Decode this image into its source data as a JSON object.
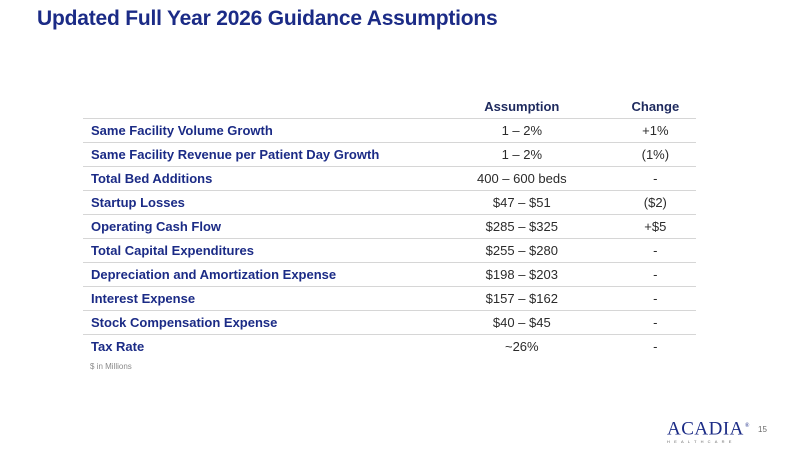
{
  "title": "Updated Full Year 2026 Guidance Assumptions",
  "table": {
    "headers": {
      "label": "",
      "assumption": "Assumption",
      "change": "Change"
    },
    "rows": [
      {
        "label": "Same Facility Volume Growth",
        "assumption": "1 – 2%",
        "change": "+1%"
      },
      {
        "label": "Same Facility Revenue per Patient Day Growth",
        "assumption": "1 – 2%",
        "change": "(1%)"
      },
      {
        "label": "Total Bed Additions",
        "assumption": "400 – 600 beds",
        "change": "-"
      },
      {
        "label": "Startup Losses",
        "assumption": "$47 – $51",
        "change": "($2)"
      },
      {
        "label": "Operating Cash Flow",
        "assumption": "$285 – $325",
        "change": "+$5"
      },
      {
        "label": "Total Capital Expenditures",
        "assumption": "$255 – $280",
        "change": "-"
      },
      {
        "label": "Depreciation and Amortization Expense",
        "assumption": "$198 – $203",
        "change": "-"
      },
      {
        "label": "Interest Expense",
        "assumption": "$157 – $162",
        "change": "-"
      },
      {
        "label": "Stock Compensation Expense",
        "assumption": "$40 – $45",
        "change": "-"
      },
      {
        "label": "Tax Rate",
        "assumption": "~26%",
        "change": "-"
      }
    ]
  },
  "footnote": "$ in Millions",
  "logo": {
    "name": "ACADIA",
    "registered": "®",
    "subtitle": "HEALTHCARE"
  },
  "page_number": "15",
  "colors": {
    "title": "#1b2b86",
    "row_label": "#1b2b86",
    "divider": "#d6d6d6"
  }
}
